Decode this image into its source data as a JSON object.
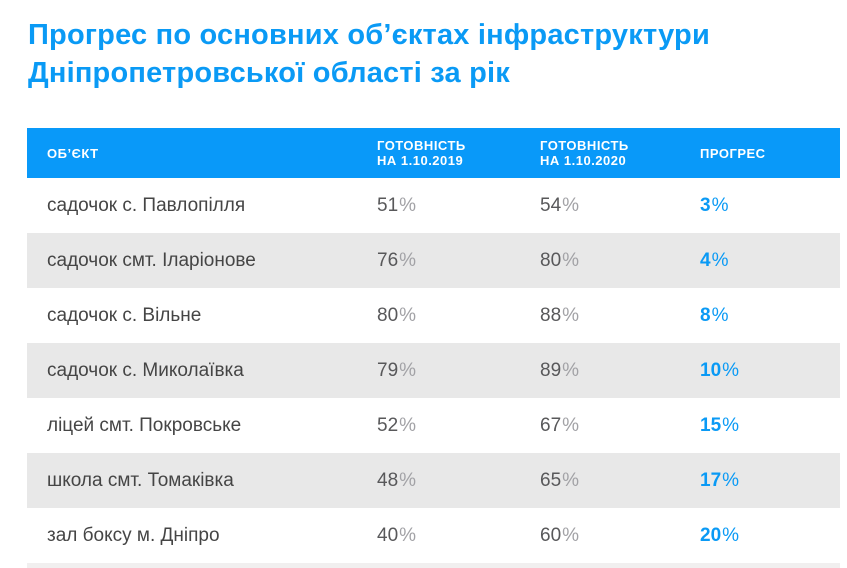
{
  "colors": {
    "accent_blue": "#0a9af5",
    "header_bg": "#0999f9",
    "row_alt": "#e8e8e8",
    "name_text": "#454545",
    "num_text": "#58585a",
    "pct_muted": "#a2a2a6"
  },
  "title": {
    "line1": "Прогрес по основних об’єктах інфраструктури",
    "line2": "Дніпропетровської області за рік"
  },
  "table": {
    "percent": "%",
    "header": {
      "object": "ОБ’ЄКТ",
      "ready2019_l1": "ГОТОВНІСТЬ",
      "ready2019_l2": "НА 1.10.2019",
      "ready2020_l1": "ГОТОВНІСТЬ",
      "ready2020_l2": "НА 1.10.2020",
      "progress": "ПРОГРЕС"
    },
    "rows": [
      {
        "object": "садочок с. Павлопілля",
        "y2019": "51",
        "y2020": "54",
        "progress": "3"
      },
      {
        "object": "садочок смт. Іларіонове",
        "y2019": "76",
        "y2020": "80",
        "progress": "4"
      },
      {
        "object": "садочок с. Вільне",
        "y2019": "80",
        "y2020": "88",
        "progress": "8"
      },
      {
        "object": "садочок с. Миколаївка",
        "y2019": "79",
        "y2020": "89",
        "progress": "10"
      },
      {
        "object": "ліцей смт. Покровське",
        "y2019": "52",
        "y2020": "67",
        "progress": "15"
      },
      {
        "object": "школа смт. Томаківка",
        "y2019": "48",
        "y2020": "65",
        "progress": "17"
      },
      {
        "object": "зал боксу м. Дніпро",
        "y2019": "40",
        "y2020": "60",
        "progress": "20"
      }
    ]
  },
  "chart_data": {
    "type": "table",
    "title": "Прогрес по основних об’єктах інфраструктури Дніпропетровської області за рік",
    "columns": [
      "ОБ’ЄКТ",
      "ГОТОВНІСТЬ НА 1.10.2019",
      "ГОТОВНІСТЬ НА 1.10.2020",
      "ПРОГРЕС"
    ],
    "rows": [
      {
        "object": "садочок с. Павлопілля",
        "readiness_2019_pct": 51,
        "readiness_2020_pct": 54,
        "progress_pct": 3
      },
      {
        "object": "садочок смт. Іларіонове",
        "readiness_2019_pct": 76,
        "readiness_2020_pct": 80,
        "progress_pct": 4
      },
      {
        "object": "садочок с. Вільне",
        "readiness_2019_pct": 80,
        "readiness_2020_pct": 88,
        "progress_pct": 8
      },
      {
        "object": "садочок с. Миколаївка",
        "readiness_2019_pct": 79,
        "readiness_2020_pct": 89,
        "progress_pct": 10
      },
      {
        "object": "ліцей смт. Покровське",
        "readiness_2019_pct": 52,
        "readiness_2020_pct": 67,
        "progress_pct": 15
      },
      {
        "object": "школа смт. Томаківка",
        "readiness_2019_pct": 48,
        "readiness_2020_pct": 65,
        "progress_pct": 17
      },
      {
        "object": "зал боксу м. Дніпро",
        "readiness_2019_pct": 40,
        "readiness_2020_pct": 60,
        "progress_pct": 20
      }
    ],
    "legend_position": "none",
    "notes": "Blue header row; body rows alternate white / light-gray; progress column values bold blue"
  }
}
